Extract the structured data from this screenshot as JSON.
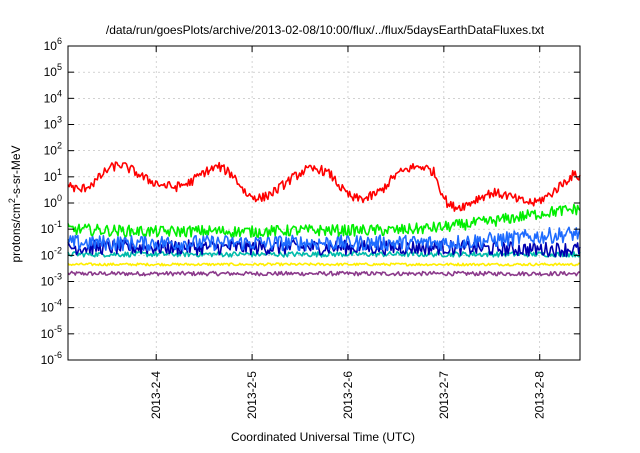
{
  "chart_data": {
    "type": "line",
    "title": "/data/run/goesPlots/archive/2013-02-08/10:00/flux/../flux/5daysEarthDataFluxes.txt",
    "xlabel": "Coordinated Universal Time (UTC)",
    "ylabel": "protons/cm2-s-sr-MeV",
    "ylabel_parts": {
      "base": "protons/cm",
      "sup": "2",
      "rest": "-s-sr-MeV"
    },
    "yscale": "log",
    "ylim_exponents": [
      -6,
      6
    ],
    "y_ticks": [
      {
        "base": "10",
        "exp": "-6",
        "e": -6
      },
      {
        "base": "10",
        "exp": "-5",
        "e": -5
      },
      {
        "base": "10",
        "exp": "-4",
        "e": -4
      },
      {
        "base": "10",
        "exp": "-3",
        "e": -3
      },
      {
        "base": "10",
        "exp": "-2",
        "e": -2
      },
      {
        "base": "10",
        "exp": "-1",
        "e": -1
      },
      {
        "base": "10",
        "exp": "0",
        "e": 0
      },
      {
        "base": "10",
        "exp": "1",
        "e": 1
      },
      {
        "base": "10",
        "exp": "2",
        "e": 2
      },
      {
        "base": "10",
        "exp": "3",
        "e": 3
      },
      {
        "base": "10",
        "exp": "4",
        "e": 4
      },
      {
        "base": "10",
        "exp": "5",
        "e": 5
      },
      {
        "base": "10",
        "exp": "6",
        "e": 6
      }
    ],
    "xlim_days": [
      3.08,
      8.42
    ],
    "x_ticks": [
      {
        "label": "2013-2-4",
        "day": 4
      },
      {
        "label": "2013-2-5",
        "day": 5
      },
      {
        "label": "2013-2-6",
        "day": 6
      },
      {
        "label": "2013-2-7",
        "day": 7
      },
      {
        "label": "2013-2-8",
        "day": 8
      }
    ],
    "grid": true,
    "legend": "none",
    "series": [
      {
        "color": "#ff0000",
        "x": [
          3.08,
          3.2,
          3.35,
          3.5,
          3.62,
          3.75,
          3.9,
          4.05,
          4.2,
          4.35,
          4.5,
          4.65,
          4.8,
          4.95,
          5.1,
          5.25,
          5.4,
          5.55,
          5.7,
          5.82,
          5.95,
          6.05,
          6.2,
          6.35,
          6.5,
          6.65,
          6.78,
          6.9,
          6.98,
          7.05,
          7.15,
          7.25,
          7.35,
          7.5,
          7.65,
          7.8,
          7.95,
          8.1,
          8.25,
          8.35,
          8.42
        ],
        "y": [
          5,
          3,
          6,
          20,
          30,
          18,
          8,
          5,
          4,
          6,
          15,
          25,
          12,
          2,
          1.5,
          3,
          8,
          18,
          20,
          12,
          3,
          1.5,
          1.5,
          3,
          12,
          22,
          25,
          15,
          2.5,
          0.8,
          0.7,
          0.9,
          1.5,
          2.5,
          2,
          1.2,
          1.0,
          2,
          6,
          12,
          10
        ],
        "jitter": 0.18
      },
      {
        "color": "#00ee00",
        "x": [
          3.08,
          3.5,
          4.0,
          4.5,
          5.0,
          5.5,
          6.0,
          6.5,
          7.0,
          7.2,
          7.5,
          7.8,
          8.1,
          8.42
        ],
        "y": [
          0.1,
          0.09,
          0.08,
          0.085,
          0.08,
          0.09,
          0.09,
          0.09,
          0.12,
          0.15,
          0.2,
          0.3,
          0.45,
          0.6
        ],
        "jitter": 0.22
      },
      {
        "color": "#1e6bff",
        "x": [
          3.08,
          3.5,
          4.0,
          4.5,
          5.0,
          5.5,
          6.0,
          6.5,
          7.0,
          7.3,
          7.6,
          7.9,
          8.2,
          8.42
        ],
        "y": [
          0.03,
          0.03,
          0.03,
          0.03,
          0.03,
          0.03,
          0.03,
          0.03,
          0.03,
          0.035,
          0.04,
          0.05,
          0.06,
          0.07
        ],
        "jitter": 0.3
      },
      {
        "color": "#0000b0",
        "x": [
          3.08,
          4.0,
          5.0,
          6.0,
          7.0,
          7.5,
          8.0,
          8.42
        ],
        "y": [
          0.02,
          0.02,
          0.02,
          0.02,
          0.02,
          0.018,
          0.017,
          0.017
        ],
        "jitter": 0.28
      },
      {
        "color": "#00bbaa",
        "x": [
          3.08,
          4.0,
          5.0,
          6.0,
          7.0,
          8.0,
          8.42
        ],
        "y": [
          0.011,
          0.011,
          0.011,
          0.011,
          0.011,
          0.011,
          0.011
        ],
        "jitter": 0.1
      },
      {
        "color": "#ffee00",
        "x": [
          3.08,
          4.0,
          5.0,
          6.0,
          7.0,
          8.0,
          8.42
        ],
        "y": [
          0.0045,
          0.0045,
          0.0045,
          0.0045,
          0.0045,
          0.0045,
          0.0045
        ],
        "jitter": 0.05
      },
      {
        "color": "#8b3a8b",
        "x": [
          3.08,
          4.0,
          5.0,
          6.0,
          7.0,
          8.0,
          8.42
        ],
        "y": [
          0.002,
          0.002,
          0.002,
          0.002,
          0.002,
          0.002,
          0.002
        ],
        "jitter": 0.08
      }
    ]
  }
}
